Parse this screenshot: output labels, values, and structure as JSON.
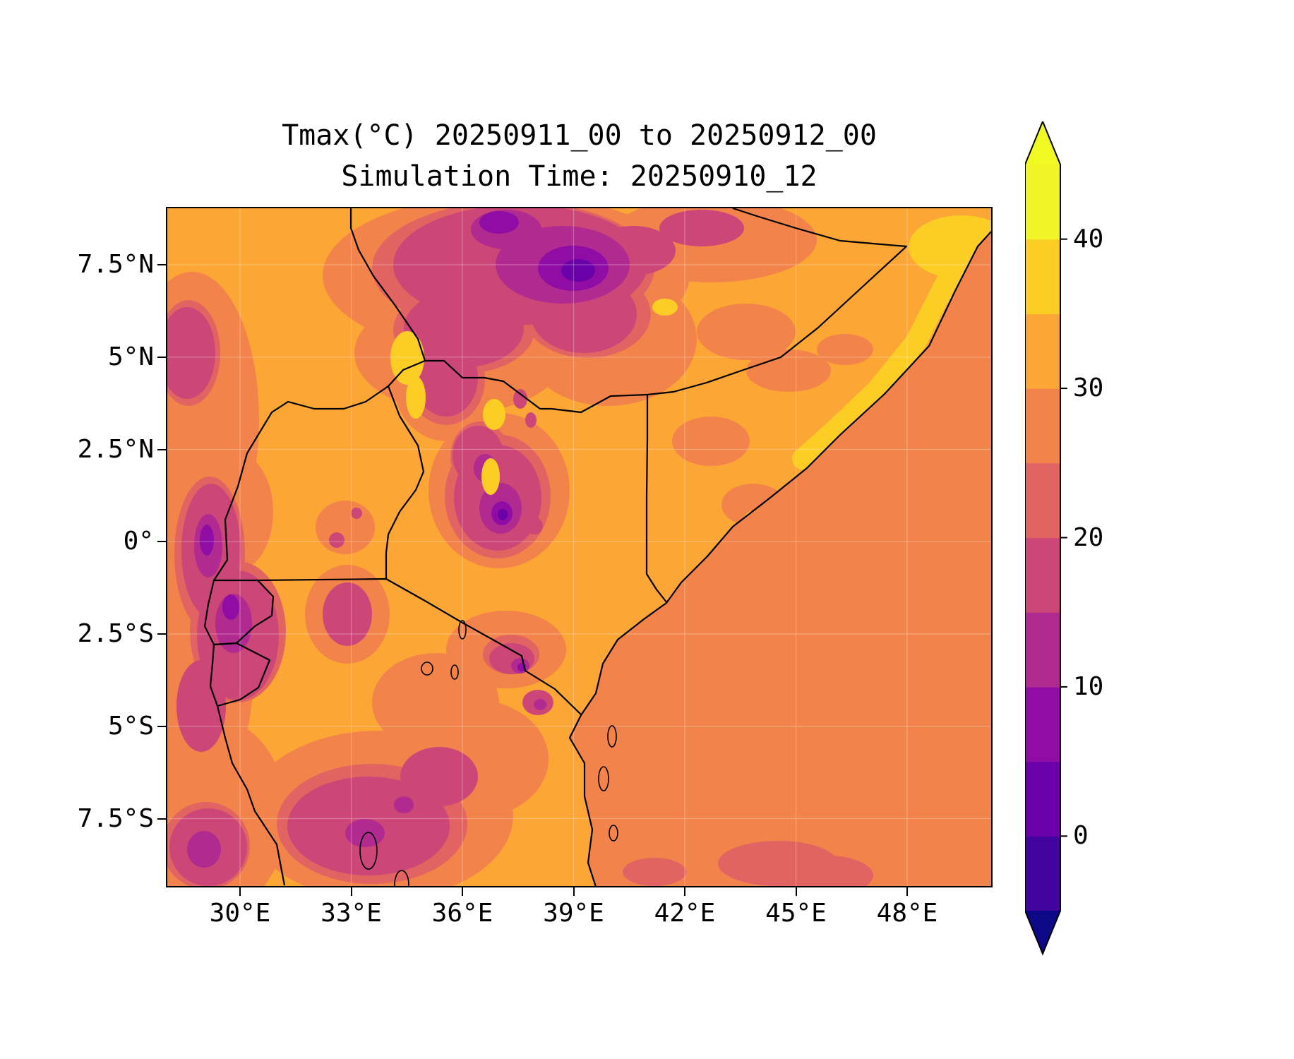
{
  "figure": {
    "title": "Tmax(°C) 20250911_00 to 20250912_00",
    "subtitle": "Simulation Time: 20250910_12",
    "background": "#ffffff"
  },
  "chart_data": {
    "type": "heatmap",
    "title": "Tmax(°C) 20250911_00 to 20250912_00",
    "subtitle": "Simulation Time: 20250910_12",
    "variable": "Tmax",
    "units": "°C",
    "valid_from": "20250911_00",
    "valid_to": "20250912_00",
    "simulation_time": "20250910_12",
    "x_axis": {
      "tick_labels": [
        "30°E",
        "33°E",
        "36°E",
        "39°E",
        "42°E",
        "45°E",
        "48°E"
      ],
      "range_approx_deg_east": [
        28.0,
        50.3
      ]
    },
    "y_axis": {
      "tick_labels": [
        "7.5°N",
        "5°N",
        "2.5°N",
        "0°",
        "2.5°S",
        "5°S",
        "7.5°S"
      ],
      "range_approx_deg_north": [
        -9.3,
        9.0
      ]
    },
    "colorbar": {
      "orientation": "vertical",
      "extend": "both",
      "levels": [
        -5,
        0,
        5,
        10,
        15,
        20,
        25,
        30,
        35,
        40,
        45
      ],
      "tick_values": [
        40,
        30,
        20,
        10,
        0
      ],
      "tick_labels": [
        "40",
        "30",
        "20",
        "10",
        "0"
      ],
      "colors": [
        "#0d0887",
        "#41049d",
        "#6a00a8",
        "#8f0da4",
        "#b12a90",
        "#cc4778",
        "#e16462",
        "#f2844b",
        "#fca636",
        "#fcce25",
        "#f2f525",
        "#f0f921"
      ],
      "colormap": "plasma-like discrete, 5°C bands"
    },
    "field_summary": {
      "dominant_land_band_c": "30-35",
      "ocean_band_c": "25-30",
      "cool_minima": "Ethiopian and Kenyan highland cores down to ~0-10°C (purple spots)",
      "warm_maxima": "NE Somali coastal strip and northern Kenya lowlands at 35-45°C (yellow)",
      "map_features": "national borders, coastline, small lakes and islands drawn in black; faint white graticule"
    }
  }
}
